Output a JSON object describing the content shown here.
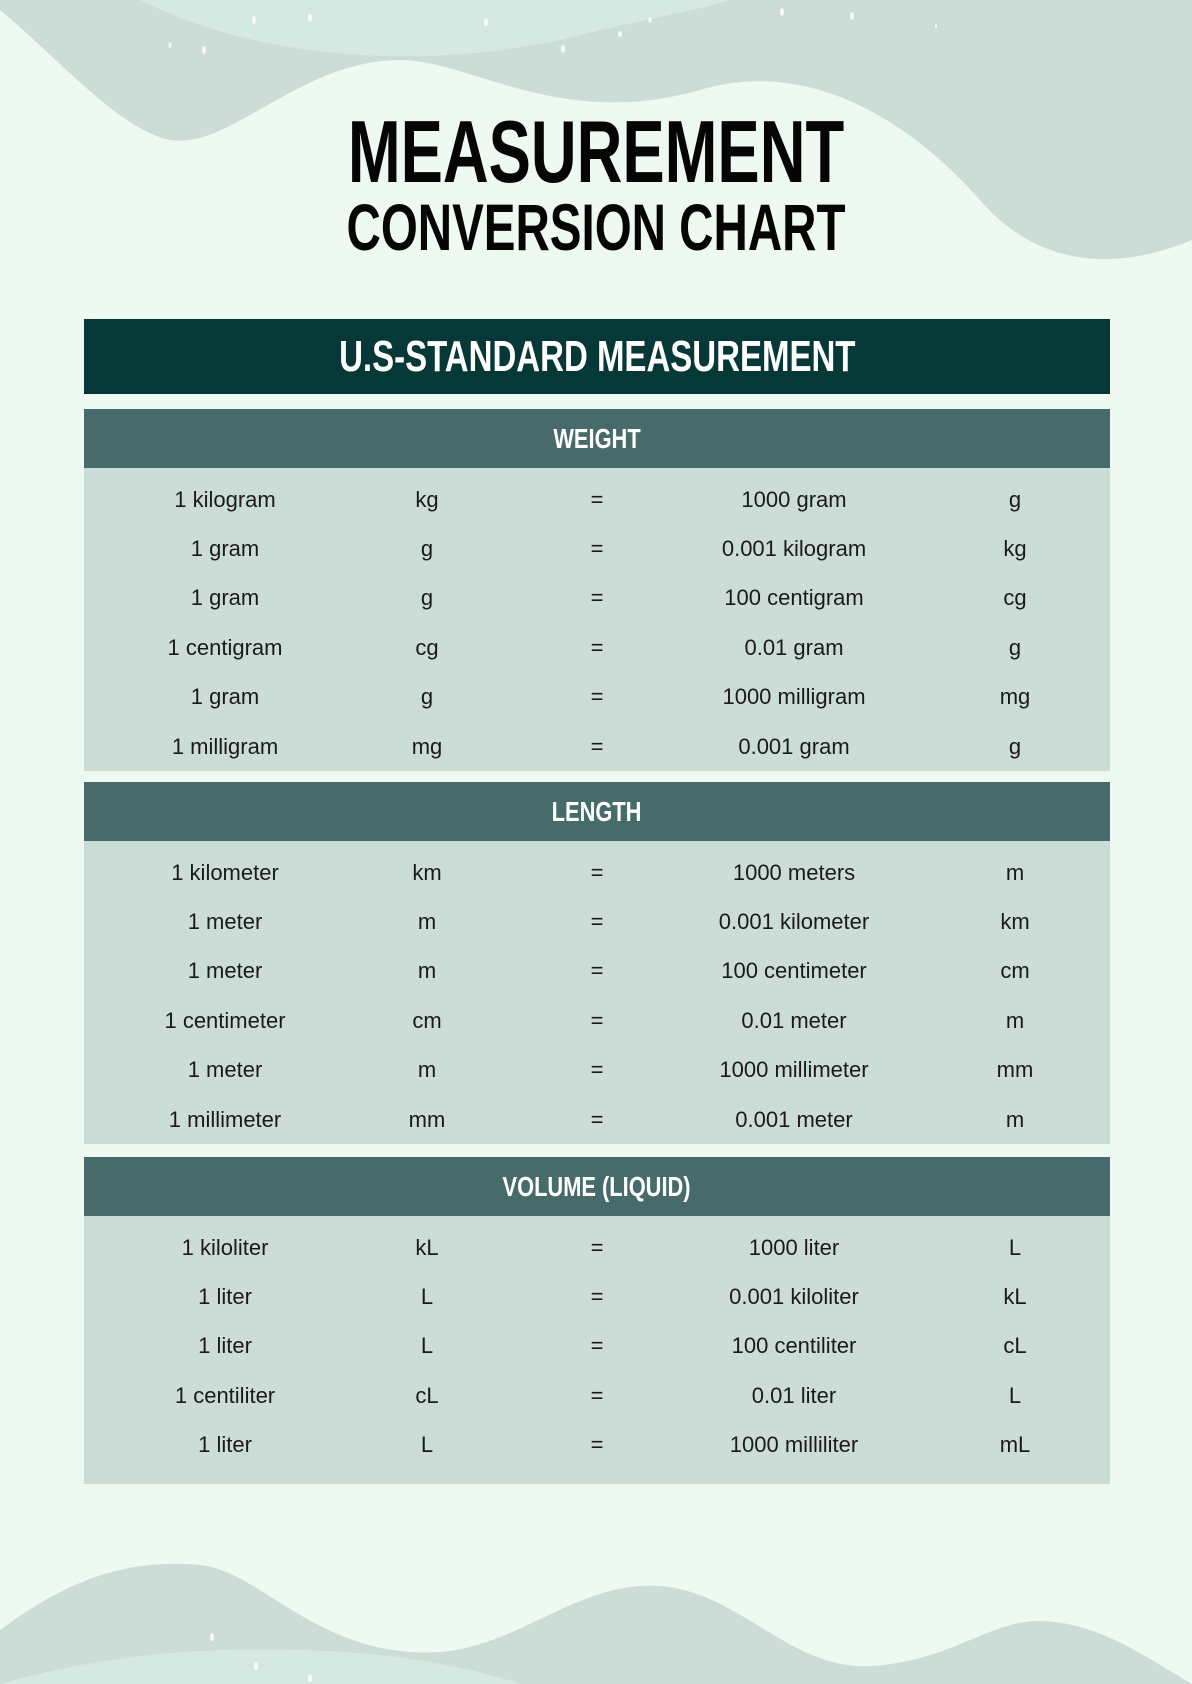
{
  "title": {
    "line1": "MEASUREMENT",
    "line2": "CONVERSION CHART"
  },
  "header": "U.S-STANDARD MEASUREMENT",
  "colors": {
    "background": "#eef9f2",
    "header": "#053836",
    "section_header": "#476b6a",
    "section_body": "#ccddd8",
    "wave": "#ccddd8"
  },
  "sections": [
    {
      "title": "WEIGHT",
      "rows": [
        [
          "1 kilogram",
          "kg",
          "=",
          "1000 gram",
          "g"
        ],
        [
          "1 gram",
          "g",
          "=",
          "0.001 kilogram",
          "kg"
        ],
        [
          "1 gram",
          "g",
          "=",
          "100 centigram",
          "cg"
        ],
        [
          "1 centigram",
          "cg",
          "=",
          "0.01 gram",
          "g"
        ],
        [
          "1 gram",
          "g",
          "=",
          "1000 milligram",
          "mg"
        ],
        [
          "1 milligram",
          "mg",
          "=",
          "0.001 gram",
          "g"
        ]
      ]
    },
    {
      "title": "LENGTH",
      "rows": [
        [
          "1 kilometer",
          "km",
          "=",
          "1000 meters",
          "m"
        ],
        [
          "1 meter",
          "m",
          "=",
          "0.001 kilometer",
          "km"
        ],
        [
          "1 meter",
          "m",
          "=",
          "100 centimeter",
          "cm"
        ],
        [
          "1 centimeter",
          "cm",
          "=",
          "0.01 meter",
          "m"
        ],
        [
          "1 meter",
          "m",
          "=",
          "1000 millimeter",
          "mm"
        ],
        [
          "1 millimeter",
          "mm",
          "=",
          "0.001 meter",
          "m"
        ]
      ]
    },
    {
      "title": "VOLUME (LIQUID)",
      "rows": [
        [
          "1 kiloliter",
          "kL",
          "=",
          "1000 liter",
          "L"
        ],
        [
          "1 liter",
          "L",
          "=",
          "0.001 kiloliter",
          "kL"
        ],
        [
          "1 liter",
          "L",
          "=",
          "100 centiliter",
          "cL"
        ],
        [
          "1 centiliter",
          "cL",
          "=",
          "0.01 liter",
          "L"
        ],
        [
          "1 liter",
          "L",
          "=",
          "1000 milliliter",
          "mL"
        ]
      ]
    }
  ]
}
